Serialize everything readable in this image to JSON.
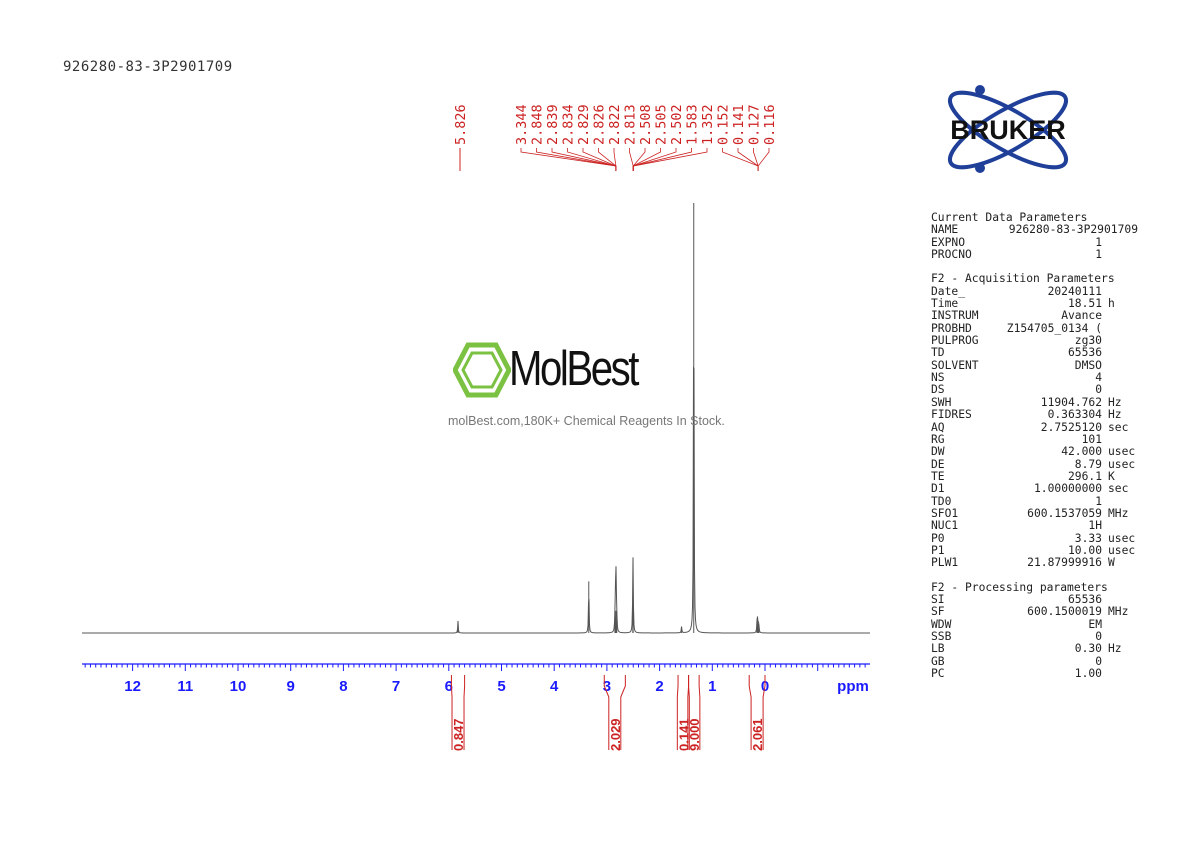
{
  "header": {
    "sample_name": "926280-83-3P2901709"
  },
  "watermark": {
    "brand": "MolBest",
    "tagline": "molBest.com,180K+ Chemical Reagents In Stock."
  },
  "logo": {
    "text": "BRUKER",
    "icon": "atom-orbit-logo"
  },
  "params": {
    "current": {
      "title": "Current Data Parameters",
      "rows": [
        {
          "key": "NAME",
          "val": "926280-83-3P2901709",
          "unit": ""
        },
        {
          "key": "EXPNO",
          "val": "1",
          "unit": ""
        },
        {
          "key": "PROCNO",
          "val": "1",
          "unit": ""
        }
      ]
    },
    "acquisition": {
      "title": "F2 - Acquisition Parameters",
      "rows": [
        {
          "key": "Date_",
          "val": "20240111",
          "unit": ""
        },
        {
          "key": "Time",
          "val": "18.51",
          "unit": "h"
        },
        {
          "key": "INSTRUM",
          "val": "Avance",
          "unit": ""
        },
        {
          "key": "PROBHD",
          "val": "Z154705_0134 (",
          "unit": ""
        },
        {
          "key": "PULPROG",
          "val": "zg30",
          "unit": ""
        },
        {
          "key": "TD",
          "val": "65536",
          "unit": ""
        },
        {
          "key": "SOLVENT",
          "val": "DMSO",
          "unit": ""
        },
        {
          "key": "NS",
          "val": "4",
          "unit": ""
        },
        {
          "key": "DS",
          "val": "0",
          "unit": ""
        },
        {
          "key": "SWH",
          "val": "11904.762",
          "unit": "Hz"
        },
        {
          "key": "FIDRES",
          "val": "0.363304",
          "unit": "Hz"
        },
        {
          "key": "AQ",
          "val": "2.7525120",
          "unit": "sec"
        },
        {
          "key": "RG",
          "val": "101",
          "unit": ""
        },
        {
          "key": "DW",
          "val": "42.000",
          "unit": "usec"
        },
        {
          "key": "DE",
          "val": "8.79",
          "unit": "usec"
        },
        {
          "key": "TE",
          "val": "296.1",
          "unit": "K"
        },
        {
          "key": "D1",
          "val": "1.00000000",
          "unit": "sec"
        },
        {
          "key": "TD0",
          "val": "1",
          "unit": ""
        },
        {
          "key": "SFO1",
          "val": "600.1537059",
          "unit": "MHz"
        },
        {
          "key": "NUC1",
          "val": "1H",
          "unit": ""
        },
        {
          "key": "P0",
          "val": "3.33",
          "unit": "usec"
        },
        {
          "key": "P1",
          "val": "10.00",
          "unit": "usec"
        },
        {
          "key": "PLW1",
          "val": "21.87999916",
          "unit": "W"
        }
      ]
    },
    "processing": {
      "title": "F2 - Processing parameters",
      "rows": [
        {
          "key": "SI",
          "val": "65536",
          "unit": ""
        },
        {
          "key": "SF",
          "val": "600.1500019",
          "unit": "MHz"
        },
        {
          "key": "WDW",
          "val": "EM",
          "unit": ""
        },
        {
          "key": "SSB",
          "val": "0",
          "unit": ""
        },
        {
          "key": "LB",
          "val": "0.30",
          "unit": "Hz"
        },
        {
          "key": "GB",
          "val": "0",
          "unit": ""
        },
        {
          "key": "PC",
          "val": "1.00",
          "unit": ""
        }
      ]
    }
  },
  "colors": {
    "axis": "#1a1aff",
    "annotation": "#cc2222",
    "trace": "#555555",
    "logo_blue": "#1f3f99",
    "logo_green": "#7cc242"
  },
  "chart_data": {
    "type": "line",
    "xlabel": "ppm",
    "xlim": [
      13.0,
      -2.0
    ],
    "x_ticks": [
      12,
      11,
      10,
      9,
      8,
      7,
      6,
      5,
      4,
      3,
      2,
      1,
      0
    ],
    "y_axis": "none",
    "peaks": [
      {
        "ppm": 5.826,
        "height": 0.028
      },
      {
        "ppm": 3.344,
        "height": 0.12
      },
      {
        "ppm": 2.848,
        "height": 0.028
      },
      {
        "ppm": 2.839,
        "height": 0.038
      },
      {
        "ppm": 2.834,
        "height": 0.05
      },
      {
        "ppm": 2.829,
        "height": 0.052
      },
      {
        "ppm": 2.826,
        "height": 0.05
      },
      {
        "ppm": 2.822,
        "height": 0.04
      },
      {
        "ppm": 2.813,
        "height": 0.03
      },
      {
        "ppm": 2.508,
        "height": 0.06
      },
      {
        "ppm": 2.505,
        "height": 0.08
      },
      {
        "ppm": 2.502,
        "height": 0.06
      },
      {
        "ppm": 1.583,
        "height": 0.015
      },
      {
        "ppm": 1.352,
        "height": 1.0
      },
      {
        "ppm": 0.152,
        "height": 0.022
      },
      {
        "ppm": 0.141,
        "height": 0.03
      },
      {
        "ppm": 0.127,
        "height": 0.022
      },
      {
        "ppm": 0.116,
        "height": 0.014
      }
    ],
    "peak_labels": [
      {
        "groups": [
          {
            "labels": [
              "5.826"
            ],
            "target_ppm": 5.826
          }
        ]
      },
      {
        "groups": [
          {
            "labels": [
              "3.344",
              "2.848",
              "2.839",
              "2.834",
              "2.829",
              "2.826",
              "2.822"
            ],
            "target_ppm": 2.83
          },
          {
            "labels": [
              "2.813",
              "2.508",
              "2.505",
              "2.502",
              "1.583",
              "1.352"
            ],
            "target_ppm": 2.5
          },
          {
            "labels": [
              "0.152",
              "0.141",
              "0.127",
              "0.116"
            ],
            "target_ppm": 0.13
          }
        ]
      }
    ],
    "integrals": [
      {
        "from": 5.95,
        "to": 5.7,
        "value": "0.847"
      },
      {
        "from": 3.05,
        "to": 2.65,
        "value": "2.029"
      },
      {
        "from": 1.65,
        "to": 1.45,
        "value": "0.141"
      },
      {
        "from": 1.45,
        "to": 1.25,
        "value": "9.000"
      },
      {
        "from": 0.3,
        "to": 0.0,
        "value": "2.061"
      }
    ]
  }
}
